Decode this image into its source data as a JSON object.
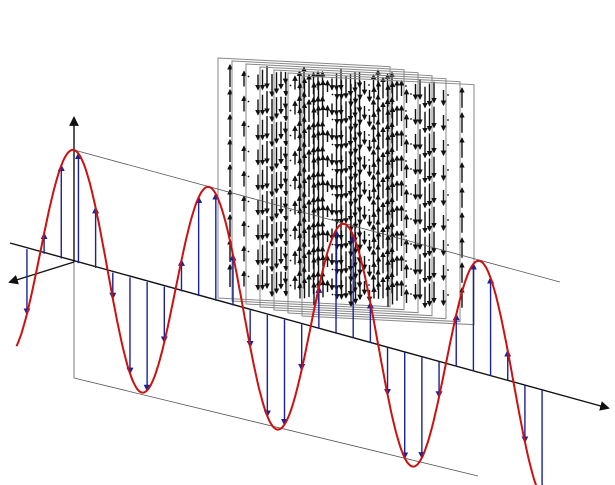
{
  "diagram": {
    "wave_color": "#cc1111",
    "amplitude_arrow_color": "#1a2299",
    "field_arrow_color": "#111111",
    "axis_color": "#111111",
    "plane_edge_color": "#888888",
    "cycles_shown": 3.5
  }
}
